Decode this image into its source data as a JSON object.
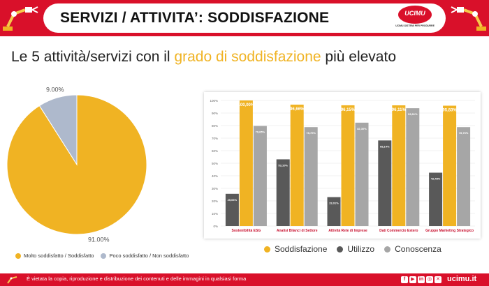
{
  "header": {
    "title": "SERVIZI / ATTIVITA’: SODDISFAZIONE",
    "logo_text": "UCIMU",
    "logo_tagline": "UCIMU-SISTEMI PER PRODURRE"
  },
  "subtitle": {
    "before": "Le 5 attività/servizi con il ",
    "highlight": "grado di soddisfazione",
    "after": " più elevato"
  },
  "colors": {
    "brand_red": "#d9102a",
    "satisfied": "#f0b323",
    "unsatisfied": "#aeb9cc",
    "utilizzo": "#595959",
    "conoscenza": "#a6a6a6"
  },
  "chart_data": [
    {
      "type": "pie",
      "title": "",
      "slices": [
        {
          "name": "Molto soddisfatto / Soddisfatto",
          "value": 91.0,
          "label": "91.00%"
        },
        {
          "name": "Poco soddisfatto / Non soddisfatto",
          "value": 9.0,
          "label": "9.00%"
        }
      ],
      "legend_position": "bottom"
    },
    {
      "type": "bar",
      "title": "",
      "categories": [
        "Sostenibilità ESG",
        "Analisi Bilanci di Settore",
        "Attività Rete di Imprese",
        "Dati Commercio Estero",
        "Gruppo Marketing Strategico"
      ],
      "series": [
        {
          "name": "Utilizzo",
          "values": [
            25.66,
            53.1,
            23.01,
            68.14,
            42.48
          ],
          "labels": [
            "25,66%",
            "53,10%",
            "23,01%",
            "68,14%",
            "42,48%"
          ]
        },
        {
          "name": "Soddisfazione",
          "values": [
            100.0,
            96.66,
            96.15,
            96.11,
            95.83
          ],
          "labels": [
            "100,00%",
            "96,66%",
            "96,15%",
            "96,11%",
            "95,83%"
          ]
        },
        {
          "name": "Conoscenza",
          "values": [
            79.65,
            78.76,
            82.3,
            93.81,
            78.76
          ],
          "labels": [
            "79,65%",
            "78,76%",
            "82,30%",
            "93,81%",
            "78,76%"
          ]
        }
      ],
      "legend_order": [
        "Soddisfazione",
        "Utilizzo",
        "Conoscenza"
      ],
      "yticks": [
        "0%",
        "10%",
        "20%",
        "30%",
        "40%",
        "50%",
        "60%",
        "70%",
        "80%",
        "90%",
        "100%"
      ],
      "ylim": [
        0,
        100
      ],
      "grid": true,
      "legend_position": "bottom"
    }
  ],
  "footer": {
    "notice": "È vietata la copia, riproduzione e distribuzione dei contenuti e delle immagini in qualsiasi forma",
    "site": "ucimu.it",
    "social_icons": [
      "facebook-icon",
      "youtube-icon",
      "linkedin-icon",
      "instagram-icon",
      "twitter-icon"
    ],
    "social_glyphs": [
      "f",
      "▶",
      "in",
      "◎",
      "✕"
    ]
  }
}
